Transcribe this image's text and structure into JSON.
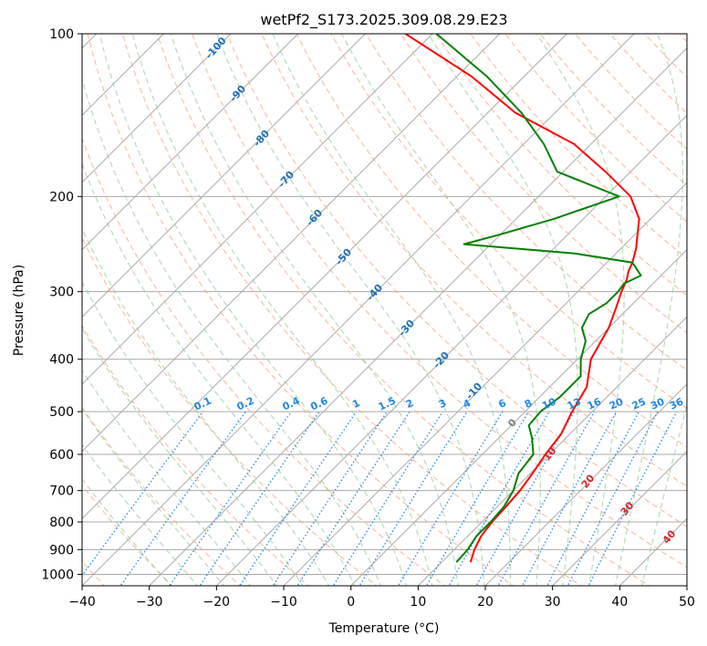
{
  "chart_data": {
    "type": "line",
    "title": "wetPf2_S173.2025.309.08.29.E23",
    "xlabel": "Temperature (°C)",
    "ylabel": "Pressure (hPa)",
    "xlim": [
      -40,
      50
    ],
    "ylim": [
      1050,
      100
    ],
    "x_ticks": [
      -40,
      -30,
      -20,
      -10,
      0,
      10,
      20,
      30,
      40,
      50
    ],
    "x_tick_labels": [
      "−40",
      "−30",
      "−20",
      "−10",
      "0",
      "10",
      "20",
      "30",
      "40",
      "50"
    ],
    "y_ticks": [
      1000,
      900,
      800,
      700,
      600,
      500,
      400,
      300,
      200,
      100
    ],
    "y_tick_labels": [
      "1000",
      "900",
      "800",
      "700",
      "600",
      "500",
      "400",
      "300",
      "200",
      "100"
    ],
    "skew_note": "isotherms skewed 45 degrees",
    "series": [
      {
        "name": "Temperature",
        "color": "#ff0000",
        "points": [
          [
            14.3,
            950
          ],
          [
            13.0,
            900
          ],
          [
            12.0,
            850
          ],
          [
            11.5,
            800
          ],
          [
            11.3,
            750
          ],
          [
            11.0,
            700
          ],
          [
            10.3,
            650
          ],
          [
            9.4,
            600
          ],
          [
            8.7,
            550
          ],
          [
            7.0,
            500
          ],
          [
            5.5,
            450
          ],
          [
            2.0,
            400
          ],
          [
            0.0,
            350
          ],
          [
            -2.0,
            320
          ],
          [
            -3.5,
            300
          ],
          [
            -4.5,
            285
          ],
          [
            -5.5,
            275
          ],
          [
            -6.2,
            265
          ],
          [
            -7.7,
            250
          ],
          [
            -11.7,
            220
          ],
          [
            -16.3,
            200
          ],
          [
            -23.7,
            180
          ],
          [
            -32.5,
            160
          ],
          [
            -45.9,
            140
          ],
          [
            -57.8,
            120
          ],
          [
            -74.0,
            100
          ]
        ]
      },
      {
        "name": "Dewpoint",
        "color": "#008000",
        "points": [
          [
            12.2,
            950
          ],
          [
            12.0,
            900
          ],
          [
            11.3,
            850
          ],
          [
            11.3,
            800
          ],
          [
            11.0,
            750
          ],
          [
            10.0,
            700
          ],
          [
            8.2,
            650
          ],
          [
            7.6,
            600
          ],
          [
            5.0,
            560
          ],
          [
            2.6,
            530
          ],
          [
            2.3,
            500
          ],
          [
            3.0,
            470
          ],
          [
            3.0,
            430
          ],
          [
            0.5,
            400
          ],
          [
            -1.5,
            370
          ],
          [
            -4.0,
            350
          ],
          [
            -5.0,
            330
          ],
          [
            -4.0,
            315
          ],
          [
            -4.0,
            300
          ],
          [
            -4.3,
            290
          ],
          [
            -3.0,
            280
          ],
          [
            -6.2,
            265
          ],
          [
            -16.0,
            255
          ],
          [
            -34.0,
            245
          ],
          [
            -30.0,
            235
          ],
          [
            -24.4,
            220
          ],
          [
            -18.0,
            200
          ],
          [
            -30.9,
            180
          ],
          [
            -37.0,
            160
          ],
          [
            -45.0,
            140
          ],
          [
            -55.5,
            120
          ],
          [
            -69.4,
            100
          ]
        ]
      }
    ],
    "dry_adiabat_labels": [
      "-100",
      "-90",
      "-80",
      "-70",
      "-60",
      "-50",
      "-40",
      "-30",
      "-20",
      "-10"
    ],
    "moist_adiabat_labels": [
      "0",
      "10",
      "20",
      "30",
      "40"
    ],
    "mixing_ratio_labels": [
      "0.1",
      "0.2",
      "0.4",
      "0.6",
      "1",
      "1.5",
      "2",
      "3",
      "4",
      "6",
      "8",
      "10",
      "13",
      "16",
      "20",
      "25",
      "30",
      "36"
    ],
    "colors": {
      "dry_adiabat": "#f4a582",
      "dry_adiabat_label": "#1f6fb5",
      "moist_adiabat": "#8fc98f",
      "moist_adiabat_label": "#d62728",
      "mixing_ratio": "#1e88e5",
      "isotherm": "#8a8a8a",
      "isobar": "#a8a8a8"
    }
  }
}
